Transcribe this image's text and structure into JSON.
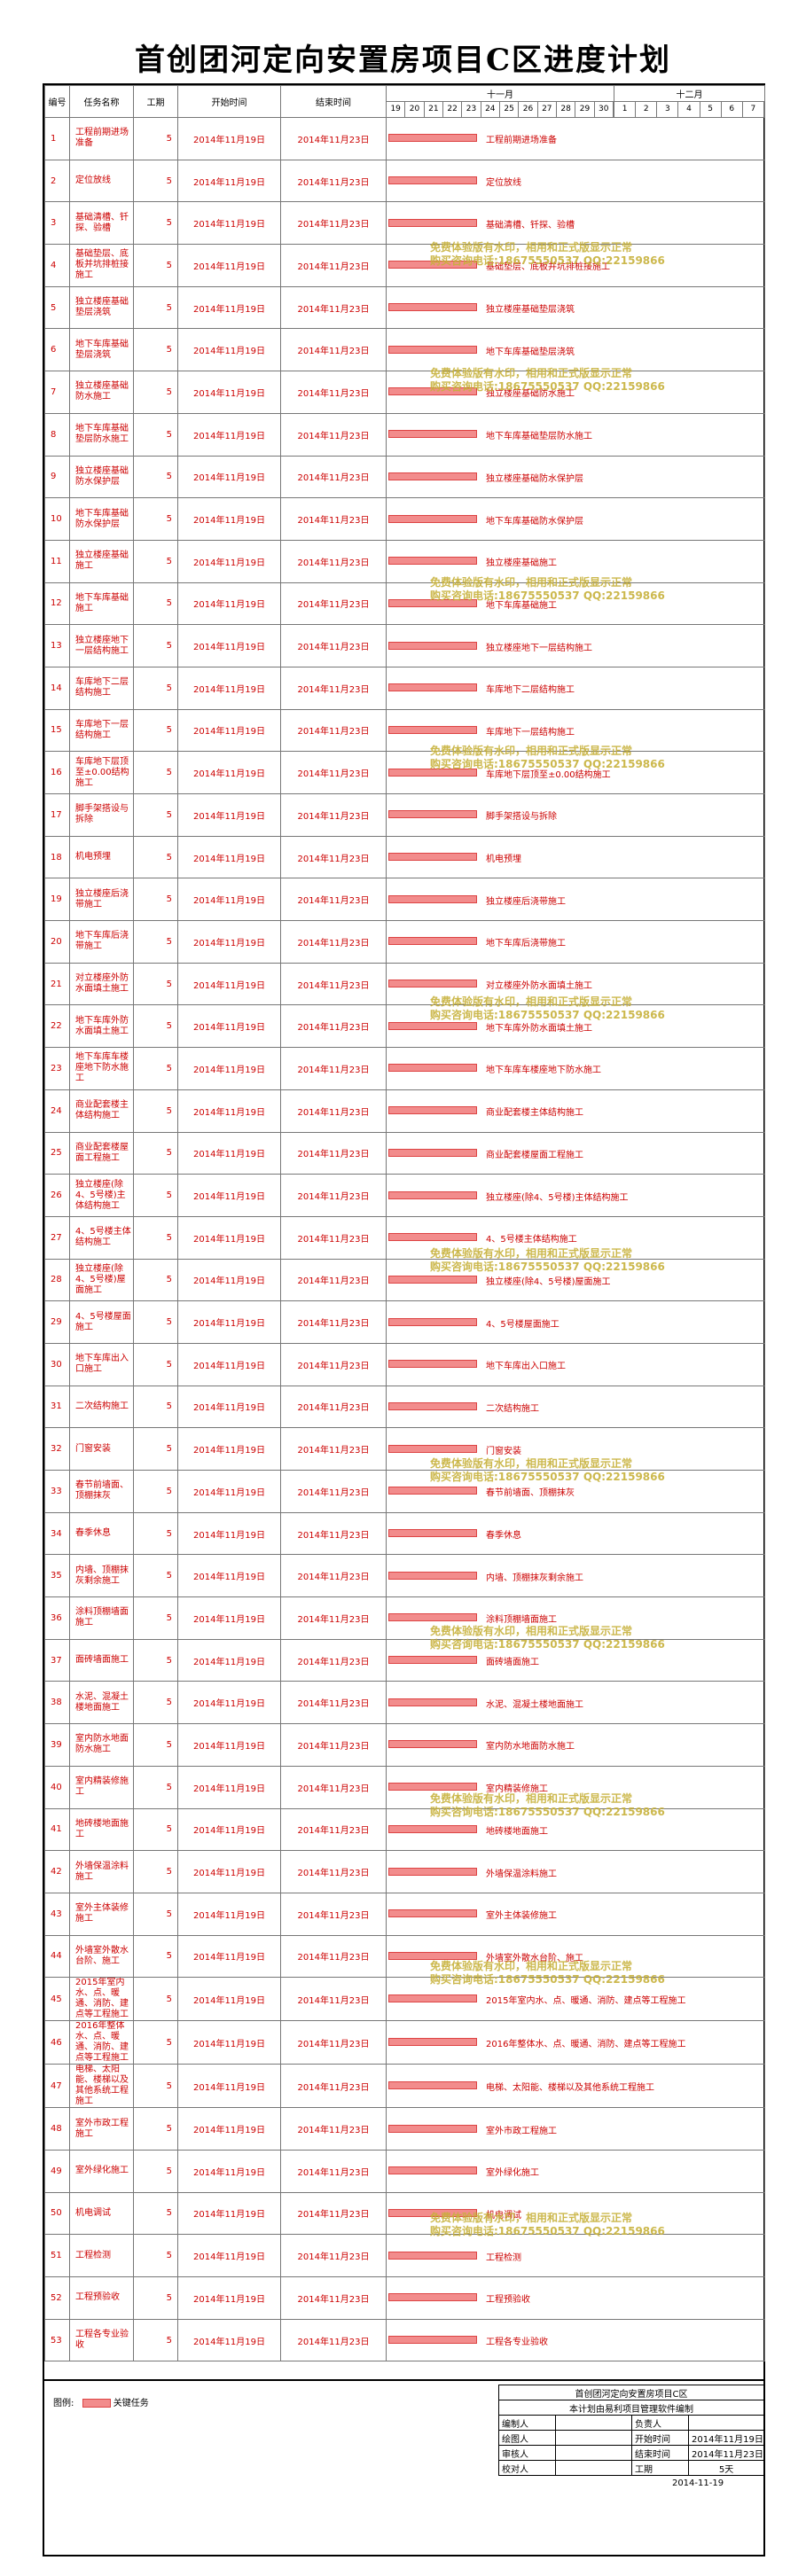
{
  "title": "首创团河定向安置房项目C区进度计划",
  "headers": {
    "id": "编号",
    "name": "任务名称",
    "duration": "工期",
    "start": "开始时间",
    "end": "结束时间"
  },
  "months": [
    "十一月",
    "十二月"
  ],
  "days": [
    "19",
    "20",
    "21",
    "22",
    "23",
    "24",
    "25",
    "26",
    "27",
    "28",
    "29",
    "30",
    "1",
    "2",
    "3",
    "4",
    "5",
    "6",
    "7"
  ],
  "tasks": [
    {
      "id": "1",
      "name": "工程前期进场准备",
      "dur": "5",
      "start": "2014年11月19日",
      "end": "2014年11月23日",
      "label": "工程前期进场准备"
    },
    {
      "id": "2",
      "name": "定位放线",
      "dur": "5",
      "start": "2014年11月19日",
      "end": "2014年11月23日",
      "label": "定位放线"
    },
    {
      "id": "3",
      "name": "基础清槽、钎探、验槽",
      "dur": "5",
      "start": "2014年11月19日",
      "end": "2014年11月23日",
      "label": "基础清槽、钎探、验槽"
    },
    {
      "id": "4",
      "name": "基础垫层、底板并坑排桩接施工",
      "dur": "5",
      "start": "2014年11月19日",
      "end": "2014年11月23日",
      "label": "基础垫层、底板并坑排桩接施工"
    },
    {
      "id": "5",
      "name": "独立楼座基础垫层浇筑",
      "dur": "5",
      "start": "2014年11月19日",
      "end": "2014年11月23日",
      "label": "独立楼座基础垫层浇筑"
    },
    {
      "id": "6",
      "name": "地下车库基础垫层浇筑",
      "dur": "5",
      "start": "2014年11月19日",
      "end": "2014年11月23日",
      "label": "地下车库基础垫层浇筑"
    },
    {
      "id": "7",
      "name": "独立楼座基础防水施工",
      "dur": "5",
      "start": "2014年11月19日",
      "end": "2014年11月23日",
      "label": "独立楼座基础防水施工"
    },
    {
      "id": "8",
      "name": "地下车库基础垫层防水施工",
      "dur": "5",
      "start": "2014年11月19日",
      "end": "2014年11月23日",
      "label": "地下车库基础垫层防水施工"
    },
    {
      "id": "9",
      "name": "独立楼座基础防水保护层",
      "dur": "5",
      "start": "2014年11月19日",
      "end": "2014年11月23日",
      "label": "独立楼座基础防水保护层"
    },
    {
      "id": "10",
      "name": "地下车库基础防水保护层",
      "dur": "5",
      "start": "2014年11月19日",
      "end": "2014年11月23日",
      "label": "地下车库基础防水保护层"
    },
    {
      "id": "11",
      "name": "独立楼座基础施工",
      "dur": "5",
      "start": "2014年11月19日",
      "end": "2014年11月23日",
      "label": "独立楼座基础施工"
    },
    {
      "id": "12",
      "name": "地下车库基础施工",
      "dur": "5",
      "start": "2014年11月19日",
      "end": "2014年11月23日",
      "label": "地下车库基础施工"
    },
    {
      "id": "13",
      "name": "独立楼座地下一层结构施工",
      "dur": "5",
      "start": "2014年11月19日",
      "end": "2014年11月23日",
      "label": "独立楼座地下一层结构施工"
    },
    {
      "id": "14",
      "name": "车库地下二层结构施工",
      "dur": "5",
      "start": "2014年11月19日",
      "end": "2014年11月23日",
      "label": "车库地下二层结构施工"
    },
    {
      "id": "15",
      "name": "车库地下一层结构施工",
      "dur": "5",
      "start": "2014年11月19日",
      "end": "2014年11月23日",
      "label": "车库地下一层结构施工"
    },
    {
      "id": "16",
      "name": "车库地下层顶至±0.00结构施工",
      "dur": "5",
      "start": "2014年11月19日",
      "end": "2014年11月23日",
      "label": "车库地下层顶至±0.00结构施工"
    },
    {
      "id": "17",
      "name": "脚手架搭设与拆除",
      "dur": "5",
      "start": "2014年11月19日",
      "end": "2014年11月23日",
      "label": "脚手架搭设与拆除"
    },
    {
      "id": "18",
      "name": "机电预埋",
      "dur": "5",
      "start": "2014年11月19日",
      "end": "2014年11月23日",
      "label": "机电预埋"
    },
    {
      "id": "19",
      "name": "独立楼座后浇带施工",
      "dur": "5",
      "start": "2014年11月19日",
      "end": "2014年11月23日",
      "label": "独立楼座后浇带施工"
    },
    {
      "id": "20",
      "name": "地下车库后浇带施工",
      "dur": "5",
      "start": "2014年11月19日",
      "end": "2014年11月23日",
      "label": "地下车库后浇带施工"
    },
    {
      "id": "21",
      "name": "对立楼座外防水面填土施工",
      "dur": "5",
      "start": "2014年11月19日",
      "end": "2014年11月23日",
      "label": "对立楼座外防水面填土施工"
    },
    {
      "id": "22",
      "name": "地下车库外防水面填土施工",
      "dur": "5",
      "start": "2014年11月19日",
      "end": "2014年11月23日",
      "label": "地下车库外防水面填土施工"
    },
    {
      "id": "23",
      "name": "地下车库车楼座地下防水施工",
      "dur": "5",
      "start": "2014年11月19日",
      "end": "2014年11月23日",
      "label": "地下车库车楼座地下防水施工"
    },
    {
      "id": "24",
      "name": "商业配套楼主体结构施工",
      "dur": "5",
      "start": "2014年11月19日",
      "end": "2014年11月23日",
      "label": "商业配套楼主体结构施工"
    },
    {
      "id": "25",
      "name": "商业配套楼屋面工程施工",
      "dur": "5",
      "start": "2014年11月19日",
      "end": "2014年11月23日",
      "label": "商业配套楼屋面工程施工"
    },
    {
      "id": "26",
      "name": "独立楼座(除4、5号楼)主体结构施工",
      "dur": "5",
      "start": "2014年11月19日",
      "end": "2014年11月23日",
      "label": "独立楼座(除4、5号楼)主体结构施工"
    },
    {
      "id": "27",
      "name": "4、5号楼主体结构施工",
      "dur": "5",
      "start": "2014年11月19日",
      "end": "2014年11月23日",
      "label": "4、5号楼主体结构施工"
    },
    {
      "id": "28",
      "name": "独立楼座(除4、5号楼)屋面施工",
      "dur": "5",
      "start": "2014年11月19日",
      "end": "2014年11月23日",
      "label": "独立楼座(除4、5号楼)屋面施工"
    },
    {
      "id": "29",
      "name": "4、5号楼屋面施工",
      "dur": "5",
      "start": "2014年11月19日",
      "end": "2014年11月23日",
      "label": "4、5号楼屋面施工"
    },
    {
      "id": "30",
      "name": "地下车库出入口施工",
      "dur": "5",
      "start": "2014年11月19日",
      "end": "2014年11月23日",
      "label": "地下车库出入口施工"
    },
    {
      "id": "31",
      "name": "二次结构施工",
      "dur": "5",
      "start": "2014年11月19日",
      "end": "2014年11月23日",
      "label": "二次结构施工"
    },
    {
      "id": "32",
      "name": "门窗安装",
      "dur": "5",
      "start": "2014年11月19日",
      "end": "2014年11月23日",
      "label": "门窗安装"
    },
    {
      "id": "33",
      "name": "春节前墙面、顶棚抹灰",
      "dur": "5",
      "start": "2014年11月19日",
      "end": "2014年11月23日",
      "label": "春节前墙面、顶棚抹灰"
    },
    {
      "id": "34",
      "name": "春季休息",
      "dur": "5",
      "start": "2014年11月19日",
      "end": "2014年11月23日",
      "label": "春季休息"
    },
    {
      "id": "35",
      "name": "内墙、顶棚抹灰剩余施工",
      "dur": "5",
      "start": "2014年11月19日",
      "end": "2014年11月23日",
      "label": "内墙、顶棚抹灰剩余施工"
    },
    {
      "id": "36",
      "name": "涂料顶棚墙面施工",
      "dur": "5",
      "start": "2014年11月19日",
      "end": "2014年11月23日",
      "label": "涂料顶棚墙面施工"
    },
    {
      "id": "37",
      "name": "面砖墙面施工",
      "dur": "5",
      "start": "2014年11月19日",
      "end": "2014年11月23日",
      "label": "面砖墙面施工"
    },
    {
      "id": "38",
      "name": "水泥、混凝土楼地面施工",
      "dur": "5",
      "start": "2014年11月19日",
      "end": "2014年11月23日",
      "label": "水泥、混凝土楼地面施工"
    },
    {
      "id": "39",
      "name": "室内防水地面防水施工",
      "dur": "5",
      "start": "2014年11月19日",
      "end": "2014年11月23日",
      "label": "室内防水地面防水施工"
    },
    {
      "id": "40",
      "name": "室内精装修施工",
      "dur": "5",
      "start": "2014年11月19日",
      "end": "2014年11月23日",
      "label": "室内精装修施工"
    },
    {
      "id": "41",
      "name": "地砖楼地面施工",
      "dur": "5",
      "start": "2014年11月19日",
      "end": "2014年11月23日",
      "label": "地砖楼地面施工"
    },
    {
      "id": "42",
      "name": "外墙保温涂料施工",
      "dur": "5",
      "start": "2014年11月19日",
      "end": "2014年11月23日",
      "label": "外墙保温涂料施工"
    },
    {
      "id": "43",
      "name": "室外主体装修施工",
      "dur": "5",
      "start": "2014年11月19日",
      "end": "2014年11月23日",
      "label": "室外主体装修施工"
    },
    {
      "id": "44",
      "name": "外墙室外散水台阶、施工",
      "dur": "5",
      "start": "2014年11月19日",
      "end": "2014年11月23日",
      "label": "外墙室外散水台阶、施工"
    },
    {
      "id": "45",
      "name": "2015年室内水、点、暖通、消防、建点等工程施工",
      "dur": "5",
      "start": "2014年11月19日",
      "end": "2014年11月23日",
      "label": "2015年室内水、点、暖通、消防、建点等工程施工"
    },
    {
      "id": "46",
      "name": "2016年整体水、点、暖通、消防、建点等工程施工",
      "dur": "5",
      "start": "2014年11月19日",
      "end": "2014年11月23日",
      "label": "2016年整体水、点、暖通、消防、建点等工程施工"
    },
    {
      "id": "47",
      "name": "电梯、太阳能、楼梯以及其他系统工程施工",
      "dur": "5",
      "start": "2014年11月19日",
      "end": "2014年11月23日",
      "label": "电梯、太阳能、楼梯以及其他系统工程施工"
    },
    {
      "id": "48",
      "name": "室外市政工程施工",
      "dur": "5",
      "start": "2014年11月19日",
      "end": "2014年11月23日",
      "label": "室外市政工程施工"
    },
    {
      "id": "49",
      "name": "室外绿化施工",
      "dur": "5",
      "start": "2014年11月19日",
      "end": "2014年11月23日",
      "label": "室外绿化施工"
    },
    {
      "id": "50",
      "name": "机电调试",
      "dur": "5",
      "start": "2014年11月19日",
      "end": "2014年11月23日",
      "label": "机电调试"
    },
    {
      "id": "51",
      "name": "工程检测",
      "dur": "5",
      "start": "2014年11月19日",
      "end": "2014年11月23日",
      "label": "工程检测"
    },
    {
      "id": "52",
      "name": "工程预验收",
      "dur": "5",
      "start": "2014年11月19日",
      "end": "2014年11月23日",
      "label": "工程预验收"
    },
    {
      "id": "53",
      "name": "工程各专业验收",
      "dur": "5",
      "start": "2014年11月19日",
      "end": "2014年11月23日",
      "label": "工程各专业验收"
    }
  ],
  "legend": {
    "label": "图例:",
    "item": "关键任务"
  },
  "info": {
    "project": "首创团河定向安置房项目C区",
    "software": "本计划由易利项目管理软件编制",
    "editor": "编制人",
    "owner": "负责人",
    "drawer": "绘图人",
    "start_label": "开始时间",
    "start_value": "2014年11月19日",
    "reviewer": "审核人",
    "end_label": "结束时间",
    "end_value": "2014年11月23日",
    "checker": "校对人",
    "duration_label": "工期",
    "duration_value": "5天",
    "date": "2014-11-19"
  },
  "watermark": [
    "免费体验版有水印，相用和正式版显示正常",
    "购买咨询电话:18675550537 QQ:2215",
    "9866"
  ]
}
